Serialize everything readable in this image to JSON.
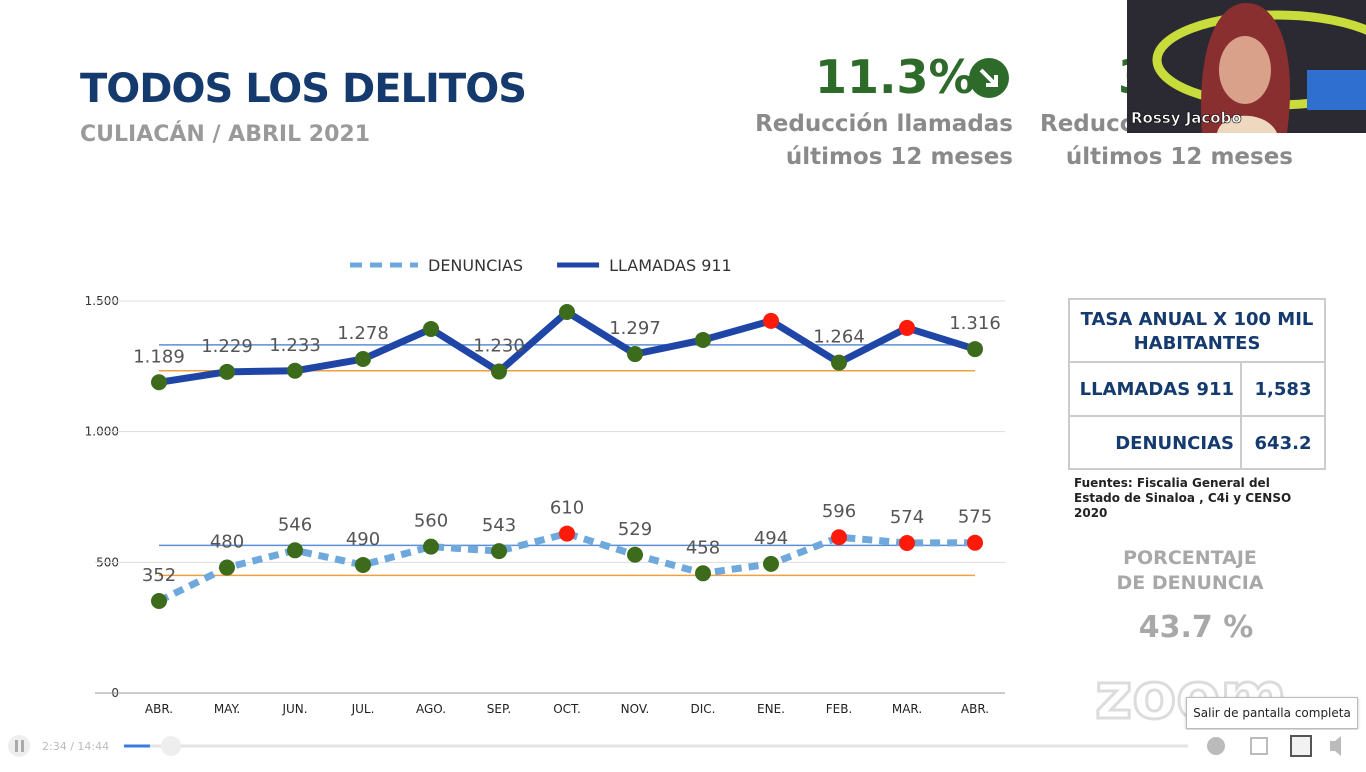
{
  "slide": {
    "title": "TODOS LOS DELITOS",
    "subtitle": "CULIACÁN / ABRIL 2021",
    "kpis": [
      {
        "value": "11.3%",
        "label_lines": [
          "Reducción llamadas",
          "últimos 12 meses"
        ]
      },
      {
        "value": "3",
        "label_lines": [
          "Reducci",
          "últimos 12 meses"
        ]
      }
    ],
    "table": {
      "header": "TASA ANUAL X 100 MIL HABITANTES",
      "rows": [
        [
          "LLAMADAS 911",
          "1,583"
        ],
        [
          "DENUNCIAS",
          "643.2"
        ]
      ]
    },
    "sources": "Fuentes: Fiscalia General del Estado de Sinaloa , C4i y CENSO 2020",
    "percent_title_lines": [
      "PORCENTAJE",
      "DE DENUNCIA"
    ],
    "percent_value": "43.7 %",
    "watermark": "zoom"
  },
  "video": {
    "participant": "Rossy Jacobo",
    "tooltip": "Salir de pantalla completa",
    "time": "2:34 / 14:44"
  },
  "chart_data": {
    "type": "line",
    "categories": [
      "ABR.",
      "MAY.",
      "JUN.",
      "JUL.",
      "AGO.",
      "SEP.",
      "OCT.",
      "NOV.",
      "DIC.",
      "ENE.",
      "FEB.",
      "MAR.",
      "ABR."
    ],
    "series": [
      {
        "name": "DENUNCIAS",
        "color": "#6fa8dc",
        "dashed": true,
        "values": [
          352,
          480,
          546,
          490,
          560,
          543,
          610,
          529,
          458,
          494,
          596,
          574,
          575
        ],
        "marker_colors": [
          "#3d6b1c",
          "#3d6b1c",
          "#3d6b1c",
          "#3d6b1c",
          "#3d6b1c",
          "#3d6b1c",
          "#ff1a0a",
          "#3d6b1c",
          "#3d6b1c",
          "#3d6b1c",
          "#ff1a0a",
          "#ff1a0a",
          "#ff1a0a"
        ]
      },
      {
        "name": "LLAMADAS 911",
        "color": "#1f46a6",
        "dashed": false,
        "values": [
          1189,
          1229,
          1233,
          1278,
          1393,
          1230,
          1458,
          1297,
          1351,
          1424,
          1264,
          1397,
          1316
        ],
        "value_labels": [
          "1.189",
          "1.229",
          "1.233",
          "1.278",
          null,
          "1.230",
          null,
          "1.297",
          null,
          null,
          "1.264",
          null,
          "1.316"
        ],
        "marker_colors": [
          "#3d6b1c",
          "#3d6b1c",
          "#3d6b1c",
          "#3d6b1c",
          "#3d6b1c",
          "#3d6b1c",
          "#3d6b1c",
          "#3d6b1c",
          "#3d6b1c",
          "#ff1a0a",
          "#3d6b1c",
          "#ff1a0a",
          "#3d6b1c"
        ]
      }
    ],
    "reference_lines": [
      {
        "value": 1332,
        "color": "#5b8fd6"
      },
      {
        "value": 1233,
        "color": "#f0a040"
      },
      {
        "value": 565,
        "color": "#5b8fd6"
      },
      {
        "value": 450,
        "color": "#f0a040"
      }
    ],
    "ylim": [
      0,
      1500
    ],
    "yticks": [
      0,
      500,
      {
        "value": 1000,
        "label": "1.000"
      },
      {
        "value": 1500,
        "label": "1.500"
      }
    ],
    "grid": true
  }
}
